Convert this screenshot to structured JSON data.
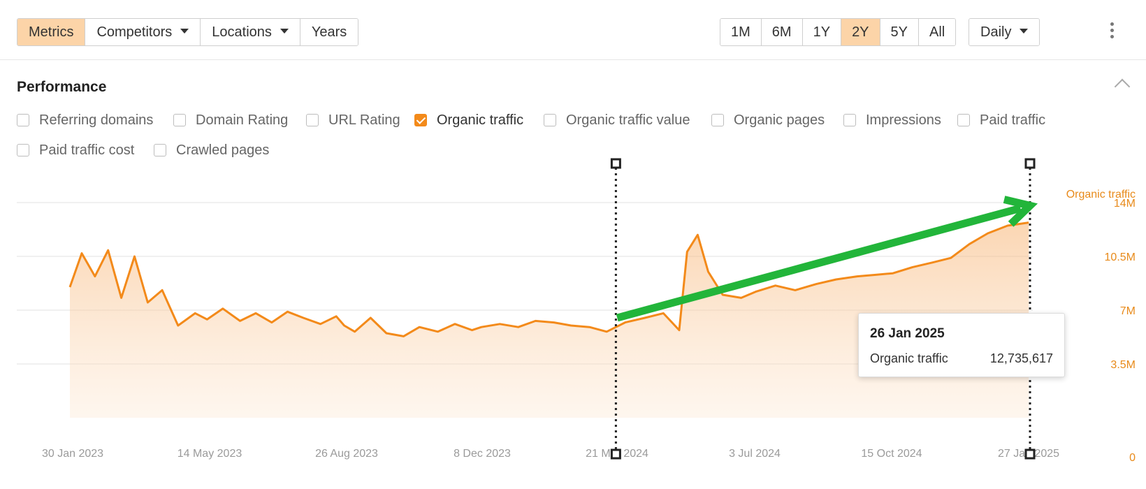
{
  "toolbar": {
    "left_tabs": [
      {
        "label": "Metrics",
        "active": true,
        "dropdown": false
      },
      {
        "label": "Competitors",
        "active": false,
        "dropdown": true
      },
      {
        "label": "Locations",
        "active": false,
        "dropdown": true
      },
      {
        "label": "Years",
        "active": false,
        "dropdown": false
      }
    ],
    "ranges": [
      {
        "label": "1M",
        "active": false
      },
      {
        "label": "6M",
        "active": false
      },
      {
        "label": "1Y",
        "active": false
      },
      {
        "label": "2Y",
        "active": true
      },
      {
        "label": "5Y",
        "active": false
      },
      {
        "label": "All",
        "active": false
      }
    ],
    "interval": "Daily"
  },
  "section": {
    "title": "Performance",
    "checkboxes": [
      {
        "label": "Referring domains",
        "checked": false
      },
      {
        "label": "Domain Rating",
        "checked": false
      },
      {
        "label": "URL Rating",
        "checked": false
      },
      {
        "label": "Organic traffic",
        "checked": true
      },
      {
        "label": "Organic traffic value",
        "checked": false
      },
      {
        "label": "Organic pages",
        "checked": false
      },
      {
        "label": "Impressions",
        "checked": false
      },
      {
        "label": "Paid traffic",
        "checked": false
      },
      {
        "label": "Paid traffic cost",
        "checked": false
      },
      {
        "label": "Crawled pages",
        "checked": false
      }
    ]
  },
  "tooltip": {
    "date": "26 Jan 2025",
    "label": "Organic traffic",
    "value": "12,735,617"
  },
  "colors": {
    "accent": "#f38a1a",
    "active_bg": "#fcd4a8",
    "trend_arrow": "#22b53a"
  },
  "chart_data": {
    "type": "area",
    "series": [
      {
        "name": "Organic traffic",
        "color": "#f38a1a",
        "points": [
          [
            "2023-01-30",
            8.5
          ],
          [
            "2023-02-08",
            10.7
          ],
          [
            "2023-02-18",
            9.2
          ],
          [
            "2023-02-28",
            10.9
          ],
          [
            "2023-03-10",
            7.8
          ],
          [
            "2023-03-20",
            10.5
          ],
          [
            "2023-03-30",
            7.5
          ],
          [
            "2023-04-10",
            8.3
          ],
          [
            "2023-04-22",
            6.0
          ],
          [
            "2023-05-05",
            6.8
          ],
          [
            "2023-05-14",
            6.4
          ],
          [
            "2023-05-26",
            7.1
          ],
          [
            "2023-06-08",
            6.3
          ],
          [
            "2023-06-20",
            6.8
          ],
          [
            "2023-07-02",
            6.2
          ],
          [
            "2023-07-14",
            6.9
          ],
          [
            "2023-07-26",
            6.5
          ],
          [
            "2023-08-08",
            6.1
          ],
          [
            "2023-08-20",
            6.6
          ],
          [
            "2023-08-26",
            6.0
          ],
          [
            "2023-09-03",
            5.6
          ],
          [
            "2023-09-15",
            6.5
          ],
          [
            "2023-09-27",
            5.5
          ],
          [
            "2023-10-10",
            5.3
          ],
          [
            "2023-10-22",
            5.9
          ],
          [
            "2023-11-05",
            5.6
          ],
          [
            "2023-11-18",
            6.1
          ],
          [
            "2023-12-01",
            5.7
          ],
          [
            "2023-12-08",
            5.9
          ],
          [
            "2023-12-22",
            6.1
          ],
          [
            "2024-01-05",
            5.9
          ],
          [
            "2024-01-18",
            6.3
          ],
          [
            "2024-02-01",
            6.2
          ],
          [
            "2024-02-14",
            6.0
          ],
          [
            "2024-02-28",
            5.9
          ],
          [
            "2024-03-12",
            5.6
          ],
          [
            "2024-03-26",
            6.2
          ],
          [
            "2024-04-10",
            6.5
          ],
          [
            "2024-04-24",
            6.8
          ],
          [
            "2024-05-06",
            5.7
          ],
          [
            "2024-05-12",
            10.8
          ],
          [
            "2024-05-20",
            11.9
          ],
          [
            "2024-05-28",
            9.5
          ],
          [
            "2024-06-08",
            8.0
          ],
          [
            "2024-06-22",
            7.8
          ],
          [
            "2024-07-03",
            8.2
          ],
          [
            "2024-07-18",
            8.6
          ],
          [
            "2024-08-02",
            8.3
          ],
          [
            "2024-08-18",
            8.7
          ],
          [
            "2024-09-02",
            9.0
          ],
          [
            "2024-09-18",
            9.2
          ],
          [
            "2024-10-02",
            9.3
          ],
          [
            "2024-10-15",
            9.4
          ],
          [
            "2024-10-30",
            9.8
          ],
          [
            "2024-11-14",
            10.1
          ],
          [
            "2024-11-28",
            10.4
          ],
          [
            "2024-12-12",
            11.3
          ],
          [
            "2024-12-26",
            12.0
          ],
          [
            "2025-01-10",
            12.5
          ],
          [
            "2025-01-26",
            12.7
          ]
        ]
      }
    ],
    "x_ticks": [
      "30 Jan 2023",
      "14 May 2023",
      "26 Aug 2023",
      "8 Dec 2023",
      "21 Mar 2024",
      "3 Jul 2024",
      "15 Oct 2024",
      "27 Jan 2025"
    ],
    "y_ticks": [
      "0",
      "3.5M",
      "7M",
      "10.5M",
      "14M"
    ],
    "y_tick_values": [
      0,
      3.5,
      7,
      10.5,
      14
    ],
    "xlim": [
      "2023-01-30",
      "2025-01-27"
    ],
    "ylim": [
      0,
      14
    ],
    "y_unit": "millions",
    "ylabel": "Organic traffic",
    "grid": true,
    "range_markers": [
      "2024-03-19",
      "2025-01-27"
    ],
    "trend_arrow": {
      "from": [
        "2024-03-20",
        6.5
      ],
      "to": [
        "2025-01-27",
        13.8
      ]
    }
  }
}
